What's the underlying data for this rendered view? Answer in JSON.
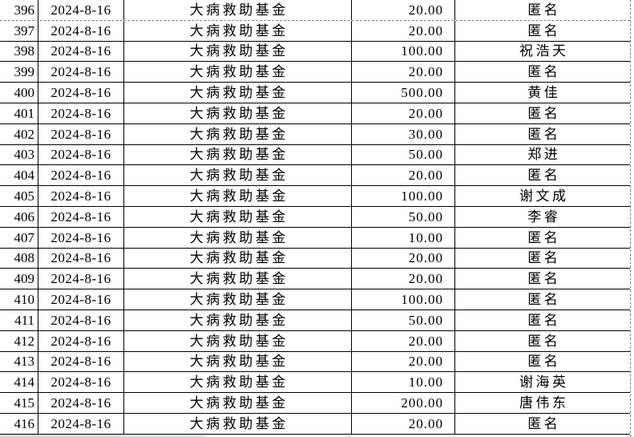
{
  "table": {
    "fund_name": "大病救助基金",
    "date": "2024-8-16",
    "page_break_after_visible_row_index": 0,
    "colors": {
      "grid_line": "#000000",
      "page_break_line": "#808080",
      "text": "#000000",
      "background": "#ffffff",
      "bottom_strip_grey": "#d9d9d9",
      "bottom_strip_blue": "#dce6f1"
    },
    "columns": [
      {
        "key": "index",
        "name": "row-number"
      },
      {
        "key": "date",
        "name": "date"
      },
      {
        "key": "fund",
        "name": "fund-name"
      },
      {
        "key": "amount",
        "name": "amount"
      },
      {
        "key": "donor",
        "name": "donor-name"
      }
    ],
    "rows": [
      {
        "index": "396",
        "date": "2024-8-16",
        "fund": "大病救助基金",
        "amount": "20.00",
        "donor": "匿名"
      },
      {
        "index": "397",
        "date": "2024-8-16",
        "fund": "大病救助基金",
        "amount": "20.00",
        "donor": "匿名"
      },
      {
        "index": "398",
        "date": "2024-8-16",
        "fund": "大病救助基金",
        "amount": "100.00",
        "donor": "祝浩天"
      },
      {
        "index": "399",
        "date": "2024-8-16",
        "fund": "大病救助基金",
        "amount": "20.00",
        "donor": "匿名"
      },
      {
        "index": "400",
        "date": "2024-8-16",
        "fund": "大病救助基金",
        "amount": "500.00",
        "donor": "黄佳"
      },
      {
        "index": "401",
        "date": "2024-8-16",
        "fund": "大病救助基金",
        "amount": "20.00",
        "donor": "匿名"
      },
      {
        "index": "402",
        "date": "2024-8-16",
        "fund": "大病救助基金",
        "amount": "30.00",
        "donor": "匿名"
      },
      {
        "index": "403",
        "date": "2024-8-16",
        "fund": "大病救助基金",
        "amount": "50.00",
        "donor": "郑进"
      },
      {
        "index": "404",
        "date": "2024-8-16",
        "fund": "大病救助基金",
        "amount": "20.00",
        "donor": "匿名"
      },
      {
        "index": "405",
        "date": "2024-8-16",
        "fund": "大病救助基金",
        "amount": "100.00",
        "donor": "谢文成"
      },
      {
        "index": "406",
        "date": "2024-8-16",
        "fund": "大病救助基金",
        "amount": "50.00",
        "donor": "李睿"
      },
      {
        "index": "407",
        "date": "2024-8-16",
        "fund": "大病救助基金",
        "amount": "10.00",
        "donor": "匿名"
      },
      {
        "index": "408",
        "date": "2024-8-16",
        "fund": "大病救助基金",
        "amount": "20.00",
        "donor": "匿名"
      },
      {
        "index": "409",
        "date": "2024-8-16",
        "fund": "大病救助基金",
        "amount": "20.00",
        "donor": "匿名"
      },
      {
        "index": "410",
        "date": "2024-8-16",
        "fund": "大病救助基金",
        "amount": "100.00",
        "donor": "匿名"
      },
      {
        "index": "411",
        "date": "2024-8-16",
        "fund": "大病救助基金",
        "amount": "50.00",
        "donor": "匿名"
      },
      {
        "index": "412",
        "date": "2024-8-16",
        "fund": "大病救助基金",
        "amount": "20.00",
        "donor": "匿名"
      },
      {
        "index": "413",
        "date": "2024-8-16",
        "fund": "大病救助基金",
        "amount": "20.00",
        "donor": "匿名"
      },
      {
        "index": "414",
        "date": "2024-8-16",
        "fund": "大病救助基金",
        "amount": "10.00",
        "donor": "谢海英"
      },
      {
        "index": "415",
        "date": "2024-8-16",
        "fund": "大病救助基金",
        "amount": "200.00",
        "donor": "唐伟东"
      },
      {
        "index": "416",
        "date": "2024-8-16",
        "fund": "大病救助基金",
        "amount": "20.00",
        "donor": "匿名"
      }
    ]
  }
}
